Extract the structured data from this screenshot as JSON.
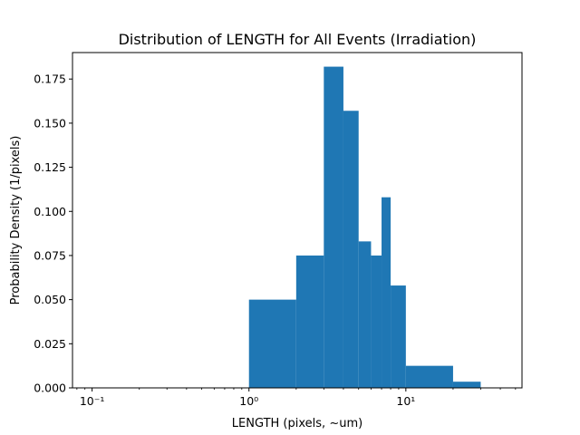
{
  "chart_data": {
    "type": "bar",
    "title": "Distribution of LENGTH for All Events (Irradiation)",
    "xlabel": "LENGTH (pixels, ~um)",
    "ylabel": "Probability Density (1/pixels)",
    "xscale": "log",
    "xlim": [
      0.075,
      55
    ],
    "ylim": [
      0,
      0.19
    ],
    "grid": false,
    "color": "#1f77b4",
    "x_ticks": [
      {
        "value": 0.1,
        "label": "10⁻¹"
      },
      {
        "value": 1,
        "label": "10⁰"
      },
      {
        "value": 10,
        "label": "10¹"
      }
    ],
    "y_ticks": [
      {
        "value": 0.0,
        "label": "0.000"
      },
      {
        "value": 0.025,
        "label": "0.025"
      },
      {
        "value": 0.05,
        "label": "0.050"
      },
      {
        "value": 0.075,
        "label": "0.075"
      },
      {
        "value": 0.1,
        "label": "0.100"
      },
      {
        "value": 0.125,
        "label": "0.125"
      },
      {
        "value": 0.15,
        "label": "0.150"
      },
      {
        "value": 0.175,
        "label": "0.175"
      }
    ],
    "bins": [
      {
        "x0": 1,
        "x1": 2,
        "value": 0.05
      },
      {
        "x0": 2,
        "x1": 3,
        "value": 0.075
      },
      {
        "x0": 3,
        "x1": 4,
        "value": 0.182
      },
      {
        "x0": 4,
        "x1": 5,
        "value": 0.157
      },
      {
        "x0": 5,
        "x1": 6,
        "value": 0.083
      },
      {
        "x0": 6,
        "x1": 7,
        "value": 0.075
      },
      {
        "x0": 7,
        "x1": 8,
        "value": 0.108
      },
      {
        "x0": 8,
        "x1": 10,
        "value": 0.058
      },
      {
        "x0": 10,
        "x1": 20,
        "value": 0.0125
      },
      {
        "x0": 20,
        "x1": 30,
        "value": 0.0035
      }
    ]
  }
}
